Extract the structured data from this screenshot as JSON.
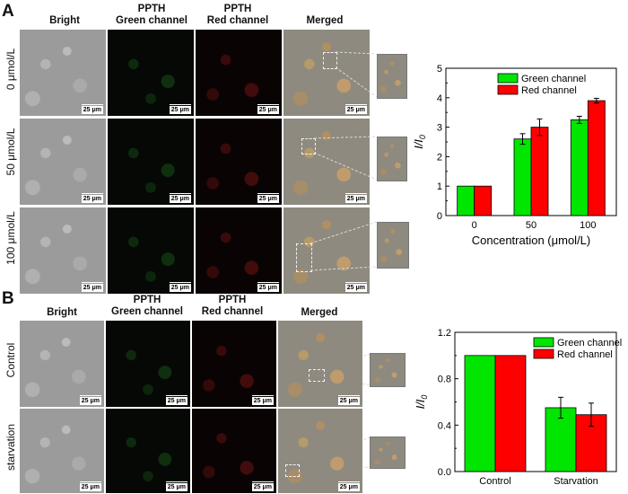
{
  "panels": [
    {
      "letter": "A",
      "headers": {
        "bright": "Bright",
        "green_l1": "PPTH",
        "green_l2": "Green channel",
        "red_l1": "PPTH",
        "red_l2": "Red channel",
        "merged": "Merged"
      },
      "rows": [
        "0 μmol/L",
        "50 μmol/L",
        "100 μmol/L"
      ],
      "scalebar": "25 μm"
    },
    {
      "letter": "B",
      "headers": {
        "bright": "Bright",
        "green_l1": "PPTH",
        "green_l2": "Green channel",
        "red_l1": "PPTH",
        "red_l2": "Red channel",
        "merged": "Merged"
      },
      "rows": [
        "Control",
        "starvation"
      ],
      "scalebar": "25 μm"
    }
  ],
  "colors": {
    "green": "#00e600",
    "red": "#ff0000"
  },
  "chart_data": [
    {
      "type": "bar",
      "categories": [
        "0",
        "50",
        "100"
      ],
      "series": [
        {
          "name": "Green channel",
          "values": [
            1.0,
            2.6,
            3.25
          ],
          "errors": [
            0,
            0.18,
            0.12
          ]
        },
        {
          "name": "Red channel",
          "values": [
            1.0,
            3.0,
            3.9
          ],
          "errors": [
            0,
            0.28,
            0.08
          ]
        }
      ],
      "xlabel": "Concentration (μmol/L)",
      "ylabel": "I/I0",
      "ylim": [
        0,
        5
      ],
      "yticks": [
        "0",
        "1",
        "2",
        "3",
        "4",
        "5"
      ],
      "legend": "top-left"
    },
    {
      "type": "bar",
      "categories": [
        "Control",
        "Starvation"
      ],
      "series": [
        {
          "name": "Green channel",
          "values": [
            1.0,
            0.55
          ],
          "errors": [
            0,
            0.09
          ]
        },
        {
          "name": "Red channel",
          "values": [
            1.0,
            0.49
          ],
          "errors": [
            0,
            0.1
          ]
        }
      ],
      "xlabel": "",
      "ylabel": "I/I0",
      "ylim": [
        0,
        1.2
      ],
      "yticks": [
        "0.0",
        "0.4",
        "0.8",
        "1.2"
      ],
      "legend": "top-right"
    }
  ]
}
